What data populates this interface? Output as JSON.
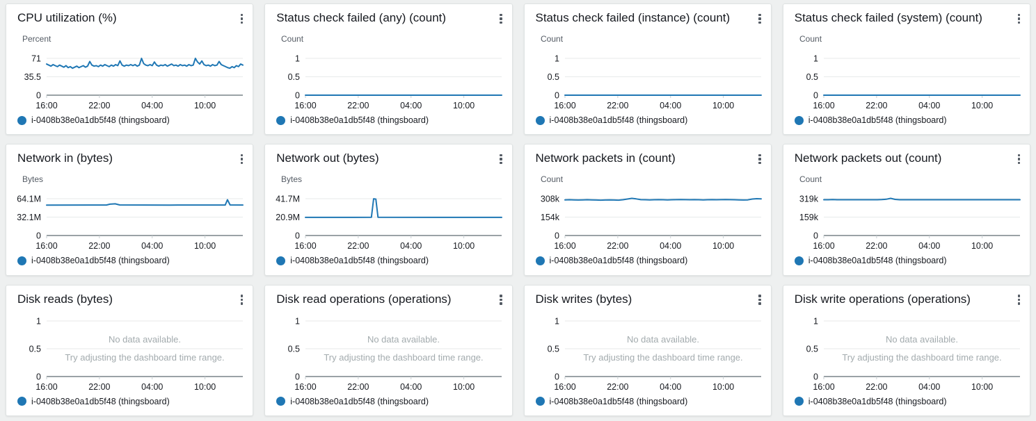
{
  "legend": {
    "label": "i-0408b38e0a1db5f48 (thingsboard)",
    "color": "#1f77b4"
  },
  "no_data": {
    "line1": "No data available.",
    "line2": "Try adjusting the dashboard time range."
  },
  "icons": {
    "card_menu": "vertical-ellipsis"
  },
  "cards": [
    {
      "title": "CPU utilization (%)",
      "unit": "Percent",
      "no_data": false,
      "chart_data": {
        "type": "line",
        "ylabel": "Percent",
        "ylim": [
          0,
          71
        ],
        "ytick_labels": [
          "0",
          "35.5",
          "71"
        ],
        "x_hours_range": [
          0,
          22.3
        ],
        "xticks_hours": [
          0,
          6,
          12,
          18
        ],
        "xtick_labels": [
          "16:00",
          "22:00",
          "04:00",
          "10:00"
        ],
        "series": [
          {
            "name": "i-0408b38e0a1db5f48 (thingsboard)",
            "values": [
              60,
              58,
              56,
              59,
              57,
              55,
              58,
              56,
              54,
              57,
              53,
              55,
              52,
              54,
              56,
              53,
              55,
              57,
              54,
              56,
              65,
              58,
              56,
              57,
              55,
              58,
              56,
              59,
              57,
              55,
              58,
              56,
              59,
              57,
              66,
              58,
              56,
              58,
              57,
              59,
              57,
              59,
              56,
              58,
              71,
              61,
              58,
              57,
              59,
              57,
              64,
              58,
              56,
              58,
              57,
              59,
              56,
              58,
              60,
              57,
              58,
              56,
              59,
              57,
              58,
              56,
              59,
              57,
              58,
              71,
              64,
              60,
              66,
              59,
              57,
              58,
              56,
              59,
              57,
              58,
              65,
              59,
              57,
              55,
              53,
              52,
              55,
              53,
              57,
              55,
              60,
              58
            ]
          }
        ]
      }
    },
    {
      "title": "Status check failed (any) (count)",
      "unit": "Count",
      "no_data": false,
      "chart_data": {
        "type": "line",
        "ylabel": "Count",
        "ylim": [
          0,
          1
        ],
        "ytick_labels": [
          "0",
          "0.5",
          "1"
        ],
        "x_hours_range": [
          0,
          22.3
        ],
        "xticks_hours": [
          0,
          6,
          12,
          18
        ],
        "xtick_labels": [
          "16:00",
          "22:00",
          "04:00",
          "10:00"
        ],
        "series": [
          {
            "name": "i-0408b38e0a1db5f48 (thingsboard)",
            "points": [
              [
                0,
                0
              ],
              [
                22.3,
                0
              ]
            ]
          }
        ]
      }
    },
    {
      "title": "Status check failed (instance) (count)",
      "unit": "Count",
      "no_data": false,
      "chart_data": {
        "type": "line",
        "ylabel": "Count",
        "ylim": [
          0,
          1
        ],
        "ytick_labels": [
          "0",
          "0.5",
          "1"
        ],
        "x_hours_range": [
          0,
          22.3
        ],
        "xticks_hours": [
          0,
          6,
          12,
          18
        ],
        "xtick_labels": [
          "16:00",
          "22:00",
          "04:00",
          "10:00"
        ],
        "series": [
          {
            "name": "i-0408b38e0a1db5f48 (thingsboard)",
            "points": [
              [
                0,
                0
              ],
              [
                22.3,
                0
              ]
            ]
          }
        ]
      }
    },
    {
      "title": "Status check failed (system) (count)",
      "unit": "Count",
      "no_data": false,
      "chart_data": {
        "type": "line",
        "ylabel": "Count",
        "ylim": [
          0,
          1
        ],
        "ytick_labels": [
          "0",
          "0.5",
          "1"
        ],
        "x_hours_range": [
          0,
          22.3
        ],
        "xticks_hours": [
          0,
          6,
          12,
          18
        ],
        "xtick_labels": [
          "16:00",
          "22:00",
          "04:00",
          "10:00"
        ],
        "series": [
          {
            "name": "i-0408b38e0a1db5f48 (thingsboard)",
            "points": [
              [
                0,
                0
              ],
              [
                22.3,
                0
              ]
            ]
          }
        ]
      }
    },
    {
      "title": "Network in (bytes)",
      "unit": "Bytes",
      "no_data": false,
      "chart_data": {
        "type": "line",
        "ylabel": "Bytes (millions)",
        "ylim": [
          0,
          64.1
        ],
        "ytick_labels": [
          "0",
          "32.1M",
          "64.1M"
        ],
        "x_hours_range": [
          0,
          22.3
        ],
        "xticks_hours": [
          0,
          6,
          12,
          18
        ],
        "xtick_labels": [
          "16:00",
          "22:00",
          "04:00",
          "10:00"
        ],
        "series": [
          {
            "name": "i-0408b38e0a1db5f48 (thingsboard)",
            "points": [
              [
                0,
                53
              ],
              [
                6.8,
                53.1
              ],
              [
                7.2,
                54.6
              ],
              [
                7.8,
                55.1
              ],
              [
                8.3,
                53.2
              ],
              [
                14,
                53
              ],
              [
                20.3,
                53.1
              ],
              [
                20.55,
                62.3
              ],
              [
                20.85,
                53.2
              ],
              [
                22.3,
                53.1
              ]
            ]
          }
        ]
      }
    },
    {
      "title": "Network out (bytes)",
      "unit": "Bytes",
      "no_data": false,
      "chart_data": {
        "type": "line",
        "ylabel": "Bytes (millions)",
        "ylim": [
          0,
          41.7
        ],
        "ytick_labels": [
          "0",
          "20.9M",
          "41.7M"
        ],
        "x_hours_range": [
          0,
          22.3
        ],
        "xticks_hours": [
          0,
          6,
          12,
          18
        ],
        "xtick_labels": [
          "16:00",
          "22:00",
          "04:00",
          "10:00"
        ],
        "series": [
          {
            "name": "i-0408b38e0a1db5f48 (thingsboard)",
            "points": [
              [
                0,
                20.5
              ],
              [
                7.5,
                20.6
              ],
              [
                7.75,
                41.6
              ],
              [
                8.0,
                41.2
              ],
              [
                8.25,
                20.7
              ],
              [
                15,
                20.5
              ],
              [
                22.3,
                20.5
              ]
            ]
          }
        ]
      }
    },
    {
      "title": "Network packets in (count)",
      "unit": "Count",
      "no_data": false,
      "chart_data": {
        "type": "line",
        "ylabel": "Count (thousands)",
        "ylim": [
          0,
          308
        ],
        "ytick_labels": [
          "0",
          "154k",
          "308k"
        ],
        "x_hours_range": [
          0,
          22.3
        ],
        "xticks_hours": [
          0,
          6,
          12,
          18
        ],
        "xtick_labels": [
          "16:00",
          "22:00",
          "04:00",
          "10:00"
        ],
        "series": [
          {
            "name": "i-0408b38e0a1db5f48 (thingsboard)",
            "values": [
              298,
              299,
              298,
              297,
              298,
              299,
              298,
              297,
              296,
              297,
              298,
              297,
              296,
              299,
              305,
              311,
              306,
              300,
              299,
              298,
              299,
              300,
              299,
              298,
              299,
              300,
              301,
              300,
              299,
              300,
              299,
              298,
              299,
              300,
              299,
              300,
              301,
              300,
              299,
              298,
              297,
              298,
              305,
              308,
              307
            ]
          }
        ]
      }
    },
    {
      "title": "Network packets out (count)",
      "unit": "Count",
      "no_data": false,
      "chart_data": {
        "type": "line",
        "ylabel": "Count (thousands)",
        "ylim": [
          0,
          319
        ],
        "ytick_labels": [
          "0",
          "159k",
          "319k"
        ],
        "x_hours_range": [
          0,
          22.3
        ],
        "xticks_hours": [
          0,
          6,
          12,
          18
        ],
        "xtick_labels": [
          "16:00",
          "22:00",
          "04:00",
          "10:00"
        ],
        "series": [
          {
            "name": "i-0408b38e0a1db5f48 (thingsboard)",
            "values": [
              310,
              310,
              311,
              310,
              310,
              310,
              310,
              310,
              310,
              310,
              310,
              310,
              310,
              311,
              314,
              322,
              313,
              310,
              310,
              310,
              310,
              310,
              310,
              310,
              310,
              310,
              310,
              310,
              310,
              310,
              310,
              310,
              310,
              310,
              310,
              310,
              310,
              310,
              310,
              310,
              310,
              310,
              310,
              310,
              310
            ]
          }
        ]
      }
    },
    {
      "title": "Disk reads (bytes)",
      "unit": null,
      "no_data": true,
      "chart_data": {
        "type": "line",
        "ylim": [
          0,
          1
        ],
        "ytick_labels": [
          "0",
          "0.5",
          "1"
        ],
        "x_hours_range": [
          0,
          22.3
        ],
        "xticks_hours": [
          0,
          6,
          12,
          18
        ],
        "xtick_labels": [
          "16:00",
          "22:00",
          "04:00",
          "10:00"
        ],
        "series": []
      }
    },
    {
      "title": "Disk read operations (operations)",
      "unit": null,
      "no_data": true,
      "chart_data": {
        "type": "line",
        "ylim": [
          0,
          1
        ],
        "ytick_labels": [
          "0",
          "0.5",
          "1"
        ],
        "x_hours_range": [
          0,
          22.3
        ],
        "xticks_hours": [
          0,
          6,
          12,
          18
        ],
        "xtick_labels": [
          "16:00",
          "22:00",
          "04:00",
          "10:00"
        ],
        "series": []
      }
    },
    {
      "title": "Disk writes (bytes)",
      "unit": null,
      "no_data": true,
      "chart_data": {
        "type": "line",
        "ylim": [
          0,
          1
        ],
        "ytick_labels": [
          "0",
          "0.5",
          "1"
        ],
        "x_hours_range": [
          0,
          22.3
        ],
        "xticks_hours": [
          0,
          6,
          12,
          18
        ],
        "xtick_labels": [
          "16:00",
          "22:00",
          "04:00",
          "10:00"
        ],
        "series": []
      }
    },
    {
      "title": "Disk write operations (operations)",
      "unit": null,
      "no_data": true,
      "chart_data": {
        "type": "line",
        "ylim": [
          0,
          1
        ],
        "ytick_labels": [
          "0",
          "0.5",
          "1"
        ],
        "x_hours_range": [
          0,
          22.3
        ],
        "xticks_hours": [
          0,
          6,
          12,
          18
        ],
        "xtick_labels": [
          "16:00",
          "22:00",
          "04:00",
          "10:00"
        ],
        "series": []
      }
    }
  ]
}
